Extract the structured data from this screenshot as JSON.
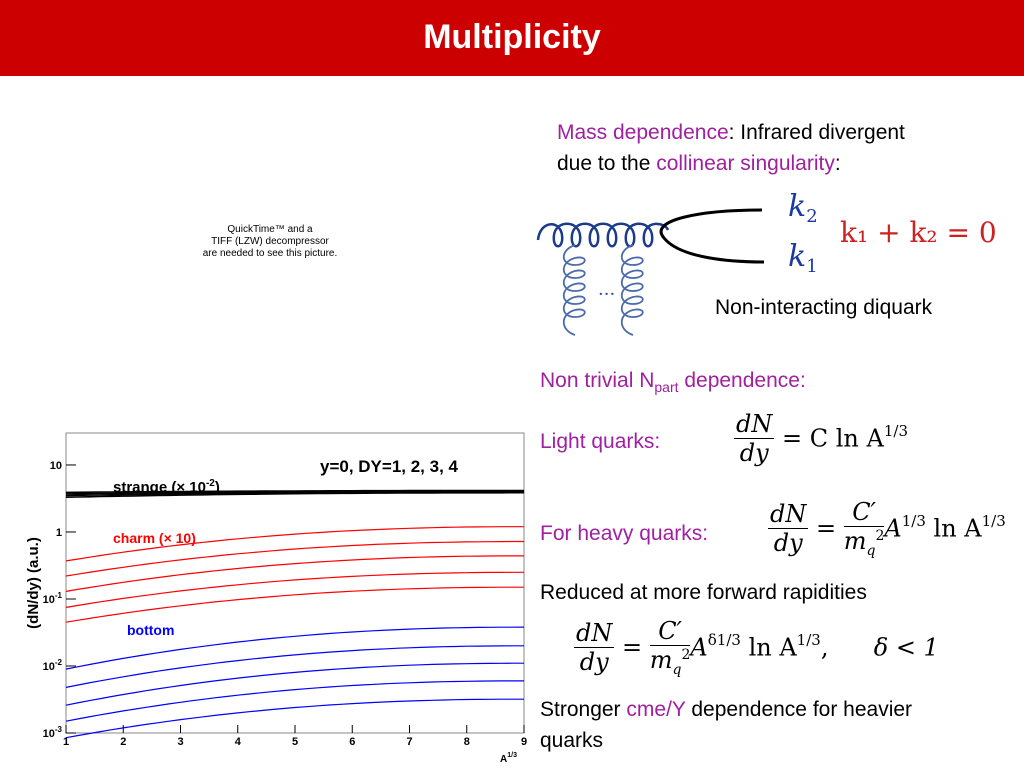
{
  "header": {
    "title": "Multiplicity"
  },
  "placeholder": {
    "line1": "QuickTime™ and a",
    "line2": "TIFF (LZW) decompressor",
    "line3": "are needed to see this picture."
  },
  "mass": {
    "hl1": "Mass dependence",
    "rest1": ": Infrared divergent",
    "pre2": "due to the ",
    "hl2": "collinear singularity",
    "post2": ":"
  },
  "diagram": {
    "k2": "k",
    "k2_sub": "2",
    "k1": "k",
    "k1_sub": "1",
    "ellipsis": "···",
    "eq": "k₁ + k₂ = 0",
    "caption": "Non-interacting diquark"
  },
  "npart": {
    "pre": "Non trivial N",
    "sub": "part",
    "post": " dependence:"
  },
  "light": {
    "label": "Light quarks:",
    "rhs": "= C ln A",
    "exp": "1/3"
  },
  "heavy": {
    "label": "For heavy quarks:",
    "rhs_pre": "A",
    "exp": "1/3",
    "rhs_mid": " ln A",
    "exp2": "1/3"
  },
  "reduced": {
    "text": "Reduced at more forward rapidities"
  },
  "formula3": {
    "delta_exp": "δ1/3",
    "mid": " ln A",
    "exp2": "1/3",
    "tail": ",",
    "cond": "δ < 1"
  },
  "stronger": {
    "pre": "Stronger ",
    "hl": "cme/Y",
    "post": " dependence for heavier",
    "line2": "quarks"
  },
  "chart_data": {
    "type": "line",
    "title": "y=0, DY=1, 2, 3, 4",
    "xlabel": "A",
    "xlabel_exp": "1/3",
    "ylabel": "(dN/dy) (a.u.)",
    "yscale": "log",
    "xlim": [
      1,
      9
    ],
    "ylim": [
      0.001,
      30
    ],
    "x_ticks": [
      "1",
      "2",
      "3",
      "4",
      "5",
      "6",
      "7",
      "8",
      "9"
    ],
    "y_ticks": [
      {
        "base": "10",
        "exp": "",
        "v": 10
      },
      {
        "base": "1",
        "exp": "",
        "v": 1
      },
      {
        "base": "10",
        "exp": "-1",
        "v": 0.1
      },
      {
        "base": "10",
        "exp": "-2",
        "v": 0.01
      },
      {
        "base": "10",
        "exp": "-3",
        "v": 0.001
      }
    ],
    "labels": {
      "strange": "strange (× 10",
      "strange_exp": "-2",
      "strange_close": ")",
      "charm": "charm (× 10)",
      "bottom": "bottom"
    },
    "colors": {
      "strange": "#000000",
      "charm": "#ff0000",
      "bottom": "#0000ff"
    },
    "series": [
      {
        "group": "strange",
        "x": [
          1,
          9
        ],
        "y": [
          3.3,
          3.85
        ]
      },
      {
        "group": "strange",
        "x": [
          1,
          9
        ],
        "y": [
          3.5,
          3.95
        ]
      },
      {
        "group": "strange",
        "x": [
          1,
          9
        ],
        "y": [
          3.7,
          4.05
        ]
      },
      {
        "group": "strange",
        "x": [
          1,
          9
        ],
        "y": [
          3.9,
          4.15
        ]
      },
      {
        "group": "charm",
        "x": [
          1,
          9
        ],
        "y": [
          0.37,
          1.2
        ]
      },
      {
        "group": "charm",
        "x": [
          1,
          9
        ],
        "y": [
          0.22,
          0.72
        ]
      },
      {
        "group": "charm",
        "x": [
          1,
          9
        ],
        "y": [
          0.13,
          0.44
        ]
      },
      {
        "group": "charm",
        "x": [
          1,
          9
        ],
        "y": [
          0.075,
          0.25
        ]
      },
      {
        "group": "charm",
        "x": [
          1,
          9
        ],
        "y": [
          0.045,
          0.15
        ]
      },
      {
        "group": "bottom",
        "x": [
          1,
          9
        ],
        "y": [
          0.009,
          0.038
        ]
      },
      {
        "group": "bottom",
        "x": [
          1,
          9
        ],
        "y": [
          0.0048,
          0.02
        ]
      },
      {
        "group": "bottom",
        "x": [
          1,
          9
        ],
        "y": [
          0.0026,
          0.011
        ]
      },
      {
        "group": "bottom",
        "x": [
          1,
          9
        ],
        "y": [
          0.0015,
          0.006
        ]
      },
      {
        "group": "bottom",
        "x": [
          1,
          9
        ],
        "y": [
          0.00085,
          0.0032
        ]
      }
    ]
  }
}
